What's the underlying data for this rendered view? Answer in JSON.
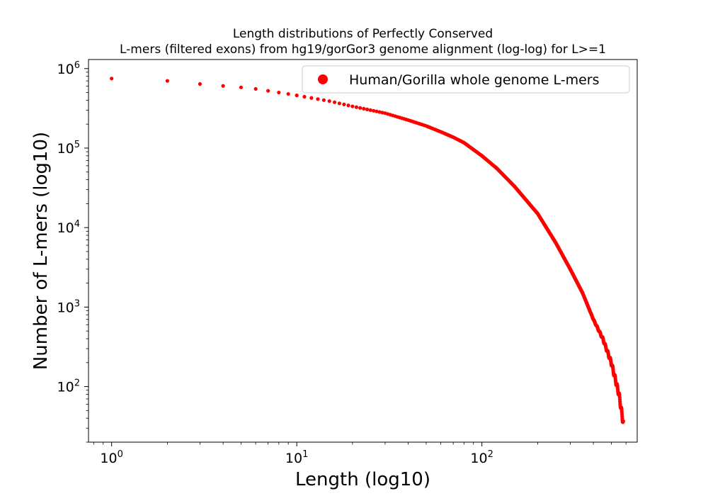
{
  "chart_data": {
    "type": "scatter",
    "title": "Length distributions of Perfectly Conserved",
    "subtitle": "L-mers (filtered exons) from hg19/gorGor3 genome alignment (log-log) for L>=1",
    "xlabel": "Length (log10)",
    "ylabel": "Number of L-mers (log10)",
    "x_scale": "log",
    "y_scale": "log",
    "xlim": [
      0.75,
      690
    ],
    "ylim": [
      20,
      1300000
    ],
    "x_ticks": [
      {
        "value": 1,
        "base": "10",
        "exp": "0"
      },
      {
        "value": 10,
        "base": "10",
        "exp": "1"
      },
      {
        "value": 100,
        "base": "10",
        "exp": "2"
      }
    ],
    "y_ticks": [
      {
        "value": 100,
        "base": "10",
        "exp": "2"
      },
      {
        "value": 1000,
        "base": "10",
        "exp": "3"
      },
      {
        "value": 10000,
        "base": "10",
        "exp": "4"
      },
      {
        "value": 100000,
        "base": "10",
        "exp": "5"
      },
      {
        "value": 1000000,
        "base": "10",
        "exp": "6"
      }
    ],
    "grid": false,
    "legend_position": "top-right",
    "series": [
      {
        "name": "Human/Gorilla whole genome L-mers",
        "color": "#ff0000",
        "x_range": [
          1,
          580
        ],
        "points": [
          [
            1,
            750000
          ],
          [
            2,
            700000
          ],
          [
            3,
            640000
          ],
          [
            4,
            605000
          ],
          [
            5,
            580000
          ],
          [
            6,
            555000
          ],
          [
            7,
            525000
          ],
          [
            8,
            500000
          ],
          [
            9,
            480000
          ],
          [
            10,
            460000
          ],
          [
            15,
            390000
          ],
          [
            20,
            335000
          ],
          [
            30,
            275000
          ],
          [
            40,
            225000
          ],
          [
            50,
            190000
          ],
          [
            60,
            160000
          ],
          [
            70,
            137000
          ],
          [
            80,
            117000
          ],
          [
            100,
            80000
          ],
          [
            120,
            56000
          ],
          [
            150,
            33000
          ],
          [
            180,
            20000
          ],
          [
            200,
            15000
          ],
          [
            250,
            6500
          ],
          [
            300,
            3000
          ],
          [
            350,
            1500
          ],
          [
            400,
            700
          ],
          [
            450,
            400
          ],
          [
            500,
            200
          ],
          [
            550,
            80
          ],
          [
            580,
            35
          ]
        ]
      }
    ]
  }
}
